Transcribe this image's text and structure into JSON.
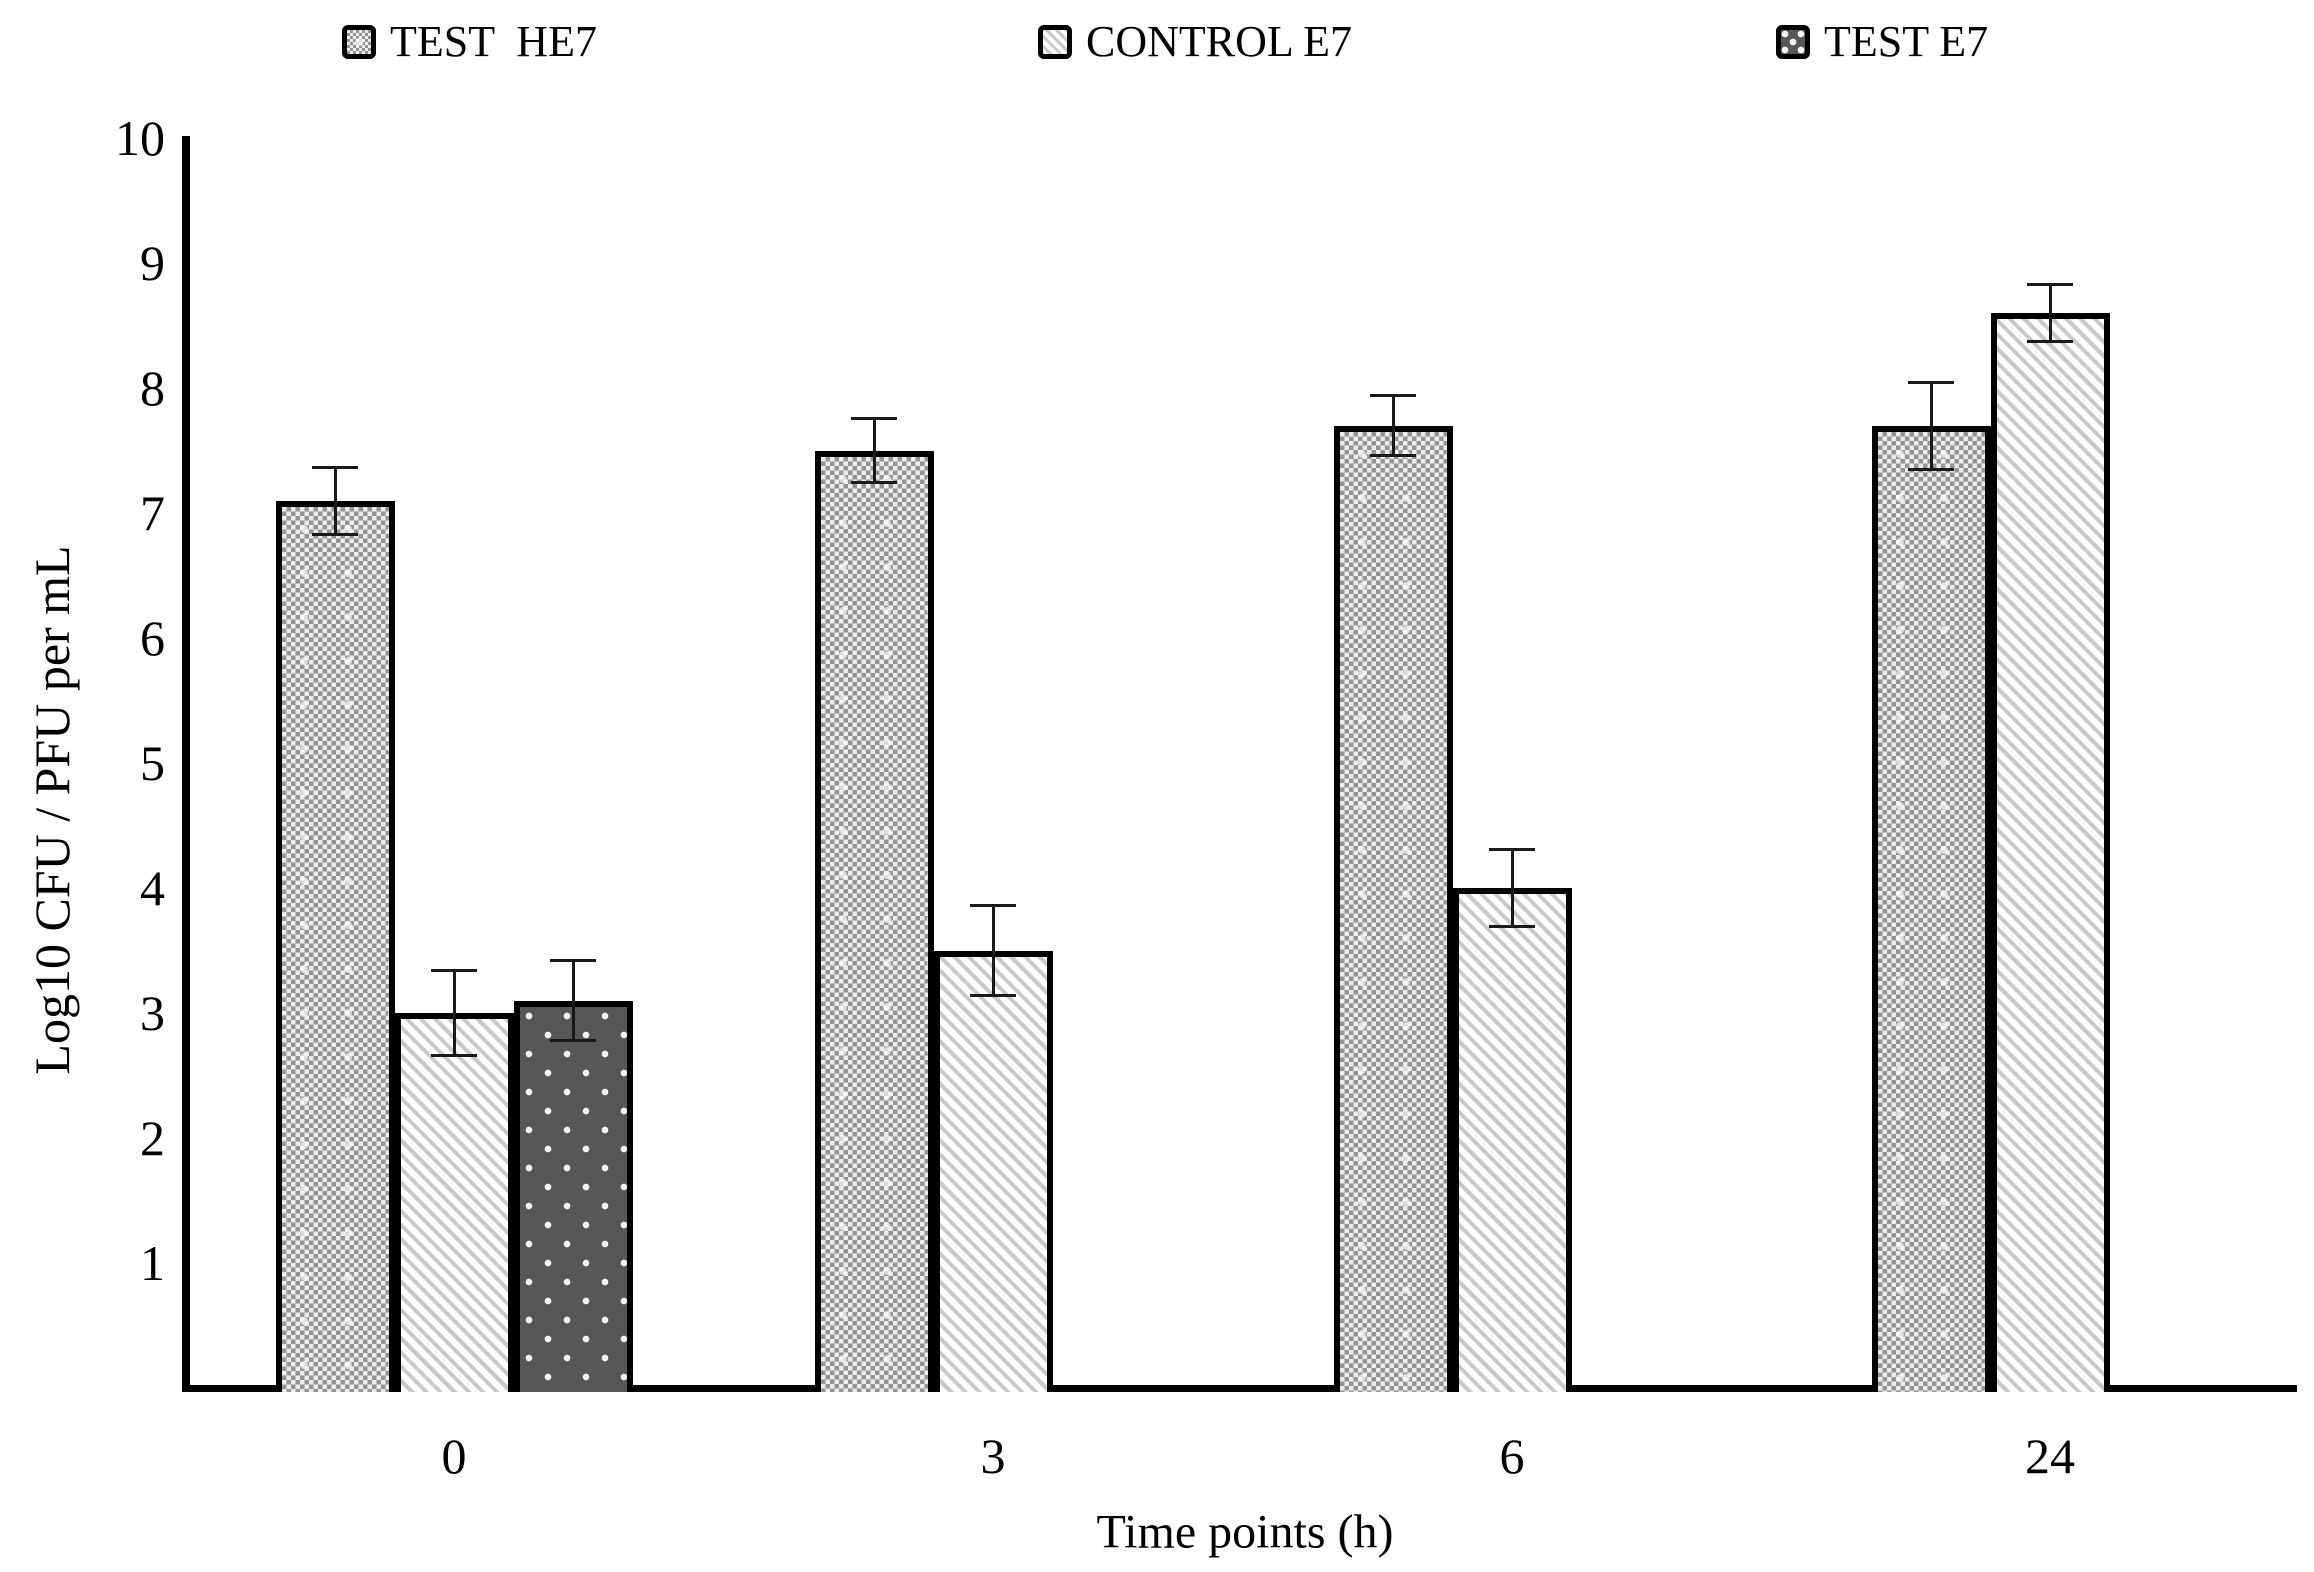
{
  "chart_data": {
    "type": "bar",
    "title": "",
    "xlabel": "Time points (h)",
    "ylabel": "Log10 CFU / PFU per mL",
    "categories": [
      "0",
      "3",
      "6",
      "24"
    ],
    "yticks": [
      1,
      2,
      3,
      4,
      5,
      6,
      7,
      8,
      9,
      10
    ],
    "ylim": [
      0,
      10
    ],
    "grid": false,
    "legend_position": "top",
    "series": [
      {
        "name": "TEST  HE7",
        "pattern": "checker",
        "values": [
          7.1,
          7.5,
          7.7,
          7.7
        ],
        "errors": [
          0.28,
          0.27,
          0.25,
          0.36
        ]
      },
      {
        "name": "CONTROL E7",
        "pattern": "diagonal",
        "values": [
          3.0,
          3.5,
          4.0,
          8.6
        ],
        "errors": [
          0.35,
          0.37,
          0.32,
          0.24
        ]
      },
      {
        "name": "TEST E7",
        "pattern": "darkdots",
        "values": [
          3.1,
          null,
          null,
          null
        ],
        "errors": [
          0.33,
          null,
          null,
          null
        ]
      }
    ]
  },
  "style": {
    "text_color": "#000000",
    "axis_color": "#000000",
    "error_color": "#1a1a1a",
    "checker_fg": "#949494",
    "checker_bg": "#ececec",
    "diag_fg": "#c9c9c9",
    "diag_bg": "#ffffff",
    "dots_fg": "#f5f5f5",
    "dots_bg": "#575757"
  }
}
